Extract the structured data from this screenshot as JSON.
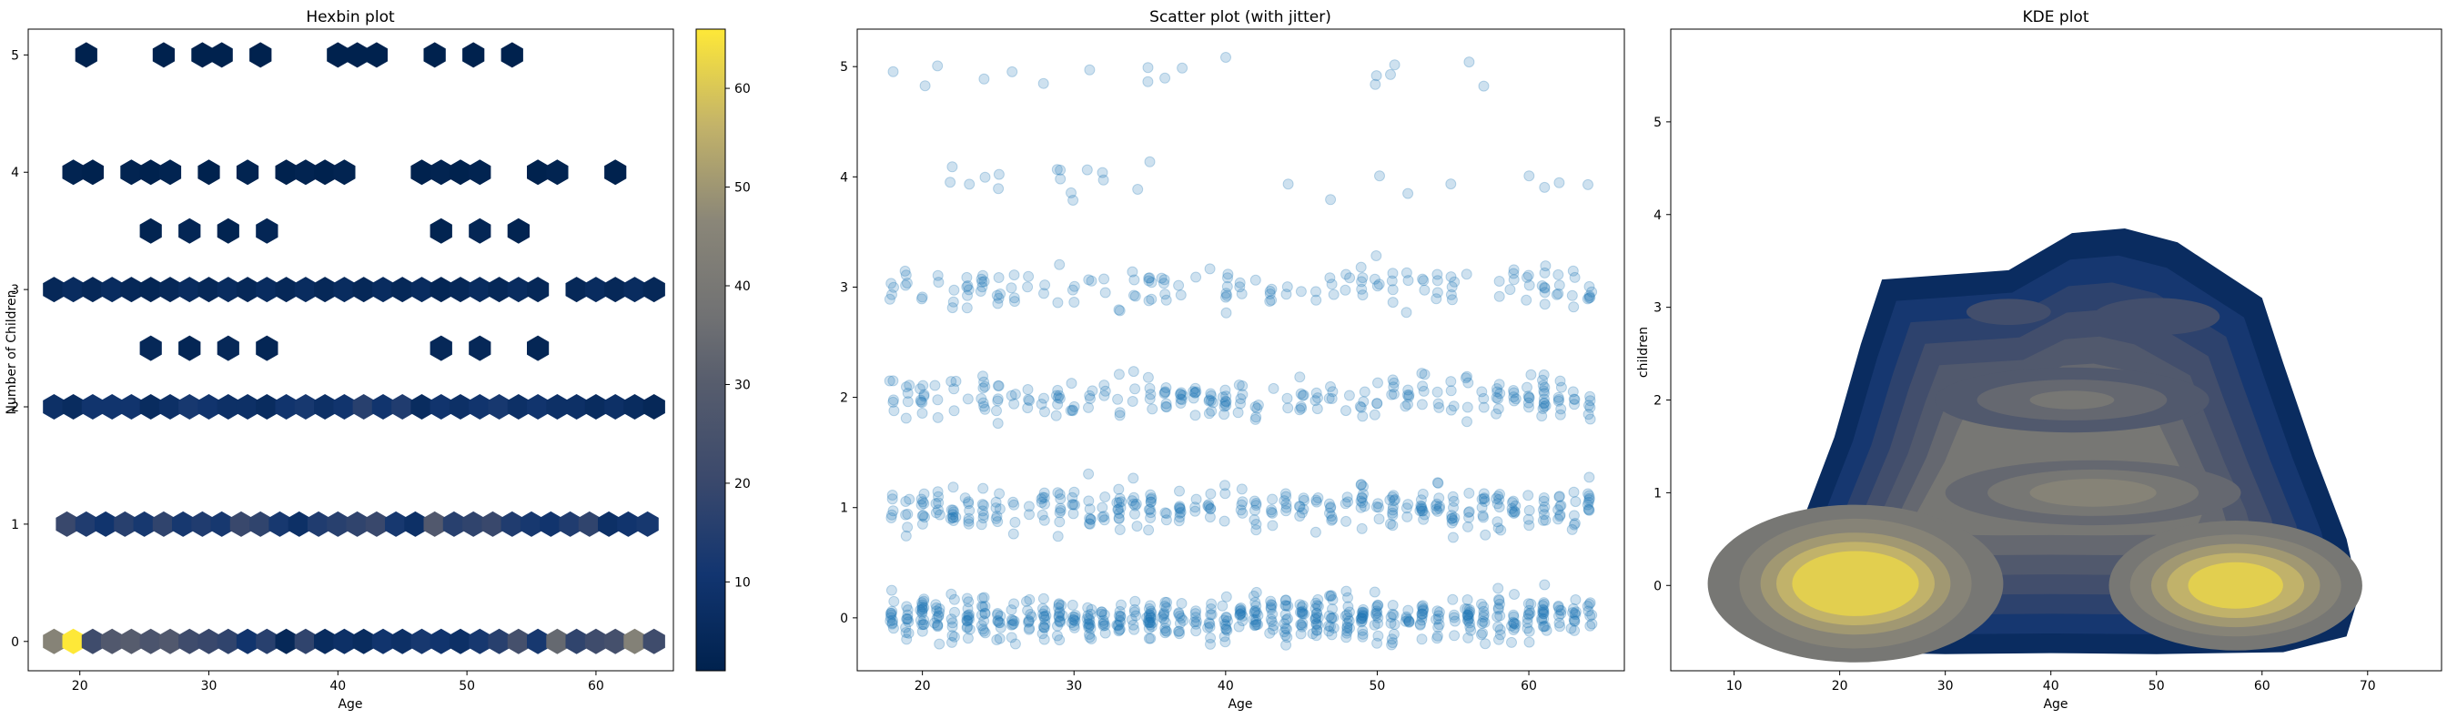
{
  "chart_data": [
    {
      "type": "hexbin",
      "title": "Hexbin plot",
      "xlabel": "Age",
      "ylabel": "Number of Children",
      "xlim": [
        16,
        66
      ],
      "ylim": [
        -0.25,
        5.22
      ],
      "xticks": [
        20,
        30,
        40,
        50,
        60
      ],
      "yticks": [
        0,
        1,
        2,
        3,
        4,
        5
      ],
      "colormap": "cividis",
      "colorbar": {
        "min": 1,
        "max": 66,
        "ticks": [
          10,
          20,
          30,
          40,
          50,
          60
        ]
      },
      "bins": [
        {
          "y": 0,
          "x": [
            18,
            19.5,
            21,
            22.5,
            24,
            25.5,
            27,
            28.5,
            30,
            31.5,
            33,
            34.5,
            36,
            37.5,
            39,
            40.5,
            42,
            43.5,
            45,
            46.5,
            48,
            49.5,
            51,
            52.5,
            54,
            55.5,
            57,
            58.5,
            60,
            61.5,
            63,
            64.5
          ],
          "counts": [
            45,
            66,
            22,
            28,
            30,
            26,
            28,
            22,
            20,
            18,
            10,
            16,
            4,
            18,
            6,
            8,
            6,
            10,
            8,
            12,
            10,
            8,
            12,
            16,
            24,
            12,
            34,
            18,
            22,
            24,
            44,
            22
          ]
        },
        {
          "y": 1,
          "x": [
            19,
            20.5,
            22,
            23.5,
            25,
            26.5,
            28,
            29.5,
            31,
            32.5,
            34,
            35.5,
            37,
            38.5,
            40,
            41.5,
            43,
            44.5,
            46,
            47.5,
            49,
            50.5,
            52,
            53.5,
            55,
            56.5,
            58,
            59.5,
            61,
            62.5,
            64
          ],
          "counts": [
            20,
            14,
            10,
            16,
            12,
            18,
            12,
            14,
            12,
            20,
            18,
            12,
            8,
            14,
            16,
            18,
            20,
            12,
            8,
            28,
            16,
            18,
            20,
            14,
            12,
            10,
            14,
            18,
            8,
            10,
            12
          ]
        },
        {
          "y": 2,
          "x": [
            18,
            19.5,
            21,
            22.5,
            24,
            25.5,
            27,
            28.5,
            30,
            31.5,
            33,
            34.5,
            36,
            37.5,
            39,
            40.5,
            42,
            43.5,
            45,
            46.5,
            48,
            49.5,
            51,
            52.5,
            54,
            55.5,
            57,
            58.5,
            60,
            61.5,
            63,
            64.5
          ],
          "counts": [
            8,
            6,
            10,
            10,
            10,
            6,
            8,
            12,
            10,
            8,
            8,
            6,
            10,
            12,
            8,
            10,
            16,
            10,
            14,
            6,
            10,
            8,
            10,
            12,
            8,
            10,
            8,
            8,
            6,
            8,
            6,
            4
          ]
        },
        {
          "y": 2.5,
          "x": [
            25.5,
            28.5,
            31.5,
            34.5,
            48,
            51,
            55.5
          ],
          "counts": [
            4,
            3,
            4,
            3,
            4,
            4,
            3
          ]
        },
        {
          "y": 3,
          "x": [
            18,
            19.5,
            21,
            22.5,
            24,
            25.5,
            27,
            28.5,
            30,
            31.5,
            33,
            34.5,
            36,
            37.5,
            39,
            40.5,
            42,
            43.5,
            45,
            46.5,
            48,
            49.5,
            51,
            52.5,
            54,
            55.5,
            58.5,
            60,
            61.5,
            63,
            64.5
          ],
          "counts": [
            4,
            6,
            4,
            6,
            4,
            3,
            4,
            6,
            4,
            6,
            4,
            6,
            4,
            6,
            4,
            6,
            4,
            6,
            4,
            6,
            3,
            4,
            6,
            4,
            6,
            4,
            4,
            6,
            4,
            6,
            4
          ]
        },
        {
          "y": 3.5,
          "x": [
            25.5,
            28.5,
            31.5,
            34.5,
            48,
            51,
            54
          ],
          "counts": [
            2,
            3,
            2,
            3,
            2,
            3,
            2
          ]
        },
        {
          "y": 4,
          "x": [
            19.5,
            21,
            24,
            25.5,
            27,
            30,
            33,
            36,
            37.5,
            39,
            40.5,
            46.5,
            48,
            49.5,
            51,
            55.5,
            57,
            61.5
          ],
          "counts": [
            2,
            1,
            2,
            1,
            2,
            1,
            2,
            1,
            2,
            1,
            2,
            1,
            2,
            1,
            2,
            1,
            2,
            1
          ]
        },
        {
          "y": 5,
          "x": [
            20.5,
            26.5,
            29.5,
            31,
            34,
            40,
            41.5,
            43,
            47.5,
            50.5,
            53.5
          ],
          "counts": [
            1,
            1,
            1,
            1,
            1,
            1,
            1,
            1,
            1,
            1,
            1
          ]
        }
      ]
    },
    {
      "type": "scatter",
      "title": "Scatter plot (with jitter)",
      "xlabel": "Age",
      "ylabel": "",
      "xlim": [
        15.7,
        66.3
      ],
      "ylim": [
        -0.48,
        5.34
      ],
      "xticks": [
        20,
        30,
        40,
        50,
        60
      ],
      "yticks": [
        0,
        1,
        2,
        3,
        4,
        5
      ],
      "color": "#1f77b4",
      "alpha": 0.22,
      "jitter_sd": 0.1,
      "groups": [
        {
          "children": 0,
          "count": 574
        },
        {
          "children": 1,
          "count": 324
        },
        {
          "children": 2,
          "count": 240
        },
        {
          "children": 3,
          "count": 157
        },
        {
          "children": 4,
          "count": 25
        },
        {
          "children": 5,
          "count": 18
        }
      ],
      "age_range": [
        18,
        64
      ]
    },
    {
      "type": "kde",
      "title": "KDE plot",
      "xlabel": "Age",
      "ylabel": "children",
      "xlim": [
        4,
        77
      ],
      "ylim": [
        -0.92,
        6.0
      ],
      "xticks": [
        10,
        20,
        30,
        40,
        50,
        60,
        70
      ],
      "yticks": [
        0,
        1,
        2,
        3,
        4,
        5
      ],
      "colormap": "cividis",
      "levels": 10,
      "fill": true,
      "modes": [
        {
          "age": 21.5,
          "children": 0.02
        },
        {
          "age": 57.5,
          "children": 0.0
        },
        {
          "age": 44,
          "children": 1.0
        },
        {
          "age": 42,
          "children": 2.0
        },
        {
          "age": 36,
          "children": 2.95
        },
        {
          "age": 50,
          "children": 2.9
        }
      ]
    }
  ]
}
